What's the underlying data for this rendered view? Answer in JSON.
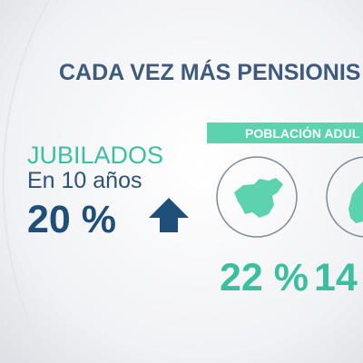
{
  "header": {
    "title": "CADA VEZ MÁS PENSIONIS"
  },
  "left_panel": {
    "label": "JUBILADOS",
    "sublabel": "En 10 años",
    "value": "20 %"
  },
  "right_panel": {
    "banner": "POBLACIÓN ADUL",
    "values": [
      "22 %",
      "14"
    ]
  }
}
